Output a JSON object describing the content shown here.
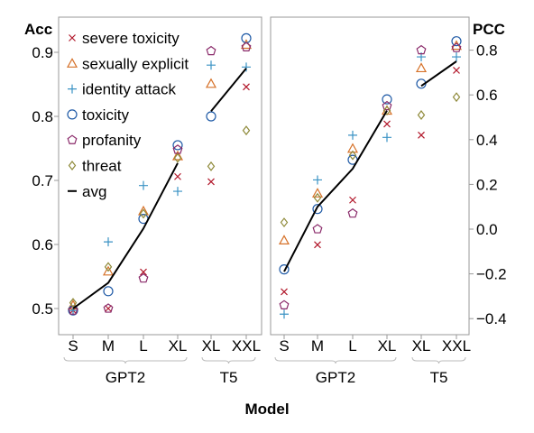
{
  "chart_data": [
    {
      "type": "scatter",
      "panel": "left",
      "ylabel": "Acc",
      "ylim": [
        0.48,
        0.95
      ],
      "yticks": [
        "0.5",
        "0.6",
        "0.7",
        "0.8",
        "0.9"
      ],
      "categories": [
        "S",
        "M",
        "L",
        "XL",
        "XL",
        "XXL"
      ],
      "groups": [
        {
          "label": "GPT2",
          "from": 0,
          "to": 3
        },
        {
          "label": "T5",
          "from": 4,
          "to": 5
        }
      ],
      "series": [
        {
          "name": "severe toxicity",
          "marker": "x",
          "color": "#b2182b",
          "values": [
            0.497,
            0.5,
            0.557,
            0.706,
            0.698,
            0.846
          ]
        },
        {
          "name": "sexually explicit",
          "marker": "triangle",
          "color": "#d6722a",
          "values": [
            0.505,
            0.558,
            0.652,
            0.738,
            0.851,
            0.912
          ]
        },
        {
          "name": "identity attack",
          "marker": "plus",
          "color": "#3a92c4",
          "values": [
            0.497,
            0.604,
            0.692,
            0.683,
            0.88,
            0.877
          ]
        },
        {
          "name": "toxicity",
          "marker": "circle",
          "color": "#1f5aa6",
          "values": [
            0.497,
            0.527,
            0.64,
            0.755,
            0.8,
            0.922
          ]
        },
        {
          "name": "profanity",
          "marker": "pentagon",
          "color": "#8a2a6a",
          "values": [
            0.497,
            0.5,
            0.547,
            0.748,
            0.902,
            0.908
          ]
        },
        {
          "name": "threat",
          "marker": "diamond",
          "color": "#8f8a3a",
          "values": [
            0.509,
            0.565,
            0.648,
            0.735,
            0.722,
            0.778
          ]
        },
        {
          "name": "avg",
          "marker": "line",
          "color": "#000000",
          "values": [
            0.5,
            0.54,
            0.625,
            0.727,
            null,
            null
          ],
          "values2": [
            null,
            null,
            null,
            null,
            0.808,
            0.875
          ]
        }
      ]
    },
    {
      "type": "scatter",
      "panel": "right",
      "ylabel": "PCC",
      "ylim": [
        -0.42,
        0.88
      ],
      "yticks": [
        "0.8",
        "0.6",
        "0.4",
        "0.2",
        "0.0",
        "−0.2",
        "−0.4"
      ],
      "categories": [
        "S",
        "M",
        "L",
        "XL",
        "XL",
        "XXL"
      ],
      "groups": [
        {
          "label": "GPT2",
          "from": 0,
          "to": 3
        },
        {
          "label": "T5",
          "from": 4,
          "to": 5
        }
      ],
      "series": [
        {
          "name": "severe toxicity",
          "marker": "x",
          "color": "#b2182b",
          "values": [
            -0.28,
            -0.07,
            0.13,
            0.47,
            0.42,
            0.71
          ]
        },
        {
          "name": "sexually explicit",
          "marker": "triangle",
          "color": "#d6722a",
          "values": [
            -0.05,
            0.16,
            0.36,
            0.53,
            0.72,
            0.82
          ]
        },
        {
          "name": "identity attack",
          "marker": "plus",
          "color": "#3a92c4",
          "values": [
            -0.38,
            0.22,
            0.42,
            0.41,
            0.77,
            0.77
          ]
        },
        {
          "name": "toxicity",
          "marker": "circle",
          "color": "#1f5aa6",
          "values": [
            -0.18,
            0.09,
            0.31,
            0.58,
            0.65,
            0.84
          ]
        },
        {
          "name": "profanity",
          "marker": "pentagon",
          "color": "#8a2a6a",
          "values": [
            -0.34,
            0.0,
            0.07,
            0.55,
            0.8,
            0.81
          ]
        },
        {
          "name": "threat",
          "marker": "diamond",
          "color": "#8f8a3a",
          "values": [
            0.03,
            0.14,
            0.33,
            0.53,
            0.51,
            0.59
          ]
        },
        {
          "name": "avg",
          "marker": "line",
          "color": "#000000",
          "values": [
            -0.19,
            0.1,
            0.27,
            0.53,
            null,
            null
          ],
          "values2": [
            null,
            null,
            null,
            null,
            0.64,
            0.75
          ]
        }
      ]
    }
  ],
  "xlabel": "Model"
}
